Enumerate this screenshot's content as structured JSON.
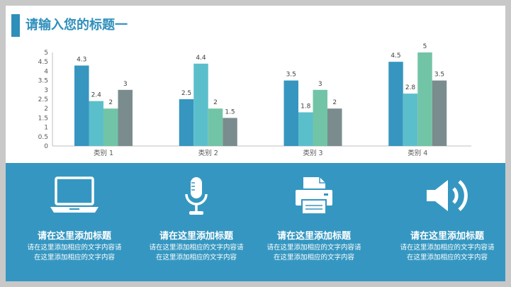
{
  "slide": {
    "title": "请输入您的标题一"
  },
  "chart_data": {
    "type": "bar",
    "categories": [
      "类别 1",
      "类别 2",
      "类别 3",
      "类别 4"
    ],
    "series": [
      {
        "values": [
          4.3,
          2.5,
          3.5,
          4.5
        ],
        "color": "#3696c0"
      },
      {
        "values": [
          2.4,
          4.4,
          1.8,
          2.8
        ],
        "color": "#5bbfcb"
      },
      {
        "values": [
          2,
          2,
          3,
          5
        ],
        "color": "#72c4a6"
      },
      {
        "values": [
          3,
          1.5,
          2,
          3.5
        ],
        "color": "#7a8c8e"
      }
    ],
    "ylim": [
      0,
      5
    ],
    "yticks": [
      "0",
      "0.5",
      "1",
      "1.5",
      "2",
      "2.5",
      "3",
      "3.5",
      "4",
      "4.5",
      "5"
    ],
    "data_labels": true,
    "grid": false,
    "legend": "none"
  },
  "features": [
    {
      "icon": "laptop-icon",
      "title": "请在这里添加标题",
      "desc": "请在这里添加相应的文字内容请在这里添加相应的文字内容"
    },
    {
      "icon": "microphone-icon",
      "title": "请在这里添加标题",
      "desc": "请在这里添加相应的文字内容请在这里添加相应的文字内容"
    },
    {
      "icon": "printer-icon",
      "title": "请在这里添加标题",
      "desc": "请在这里添加相应的文字内容请在这里添加相应的文字内容"
    },
    {
      "icon": "speaker-icon",
      "title": "请在这里添加标题",
      "desc": "请在这里添加相应的文字内容请在这里添加相应的文字内容"
    }
  ],
  "colors": {
    "accent": "#2f8fbb",
    "panel": "#3597c1"
  }
}
